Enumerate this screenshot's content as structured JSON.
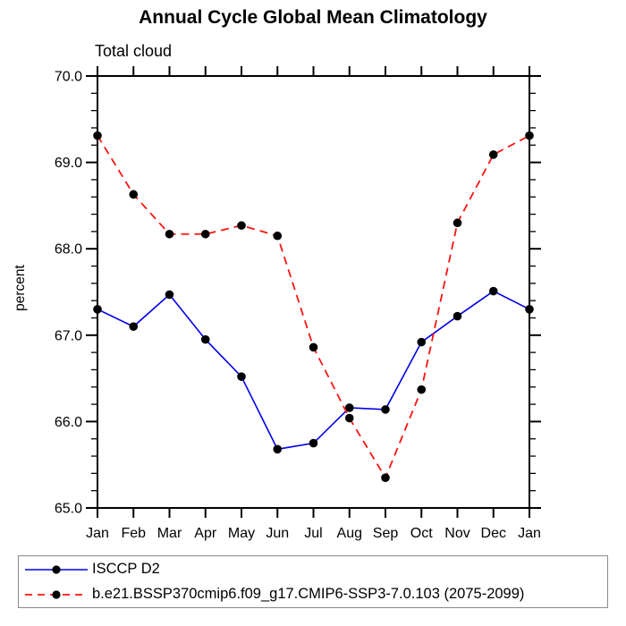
{
  "title": "Annual Cycle Global Mean Climatology",
  "chart_data": {
    "type": "line",
    "title": "Annual Cycle Global Mean Climatology",
    "subtitle": "Total cloud",
    "ylabel": "percent",
    "x_categories": [
      "Jan",
      "Feb",
      "Mar",
      "Apr",
      "May",
      "Jun",
      "Jul",
      "Aug",
      "Sep",
      "Oct",
      "Nov",
      "Dec",
      "Jan"
    ],
    "ylim": [
      65.0,
      70.0
    ],
    "yticks": [
      65.0,
      66.0,
      67.0,
      68.0,
      69.0,
      70.0
    ],
    "ytick_labels": [
      "65.0",
      "66.0",
      "67.0",
      "68.0",
      "69.0",
      "70.0"
    ],
    "ytick_minor_step": 0.2,
    "grid": "off",
    "legend_position": "bottom-box",
    "series": [
      {
        "name": "ISCCP D2",
        "color": "#0000e6",
        "line_style": "solid",
        "marker": "filled-circle",
        "marker_color": "#000000",
        "values": [
          67.3,
          67.1,
          67.47,
          66.95,
          66.52,
          65.68,
          65.75,
          66.16,
          66.14,
          66.92,
          67.22,
          67.51,
          67.3
        ]
      },
      {
        "name": "b.e21.BSSP370cmip6.f09_g17.CMIP6-SSP3-7.0.103 (2075-2099)",
        "color": "#fa1410",
        "line_style": "dashed",
        "marker": "filled-circle",
        "marker_color": "#000000",
        "values": [
          69.31,
          68.63,
          68.17,
          68.17,
          68.27,
          68.15,
          66.86,
          66.04,
          65.35,
          66.37,
          68.3,
          69.09,
          69.31
        ]
      }
    ],
    "axis_color": "#000000"
  }
}
